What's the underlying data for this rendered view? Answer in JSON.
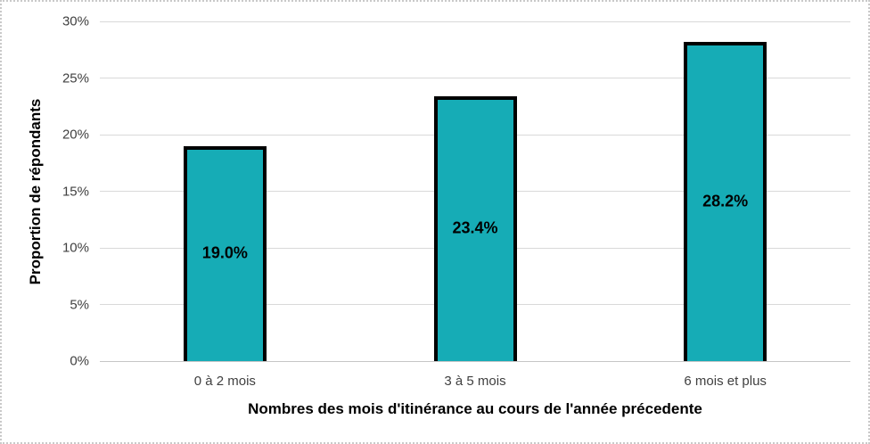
{
  "chart_data": {
    "type": "bar",
    "title": "",
    "categories": [
      "0 à 2 mois",
      "3 à 5 mois",
      "6 mois et plus"
    ],
    "values": [
      19.0,
      23.4,
      28.2
    ],
    "value_labels": [
      "19.0%",
      "23.4%",
      "28.2%"
    ],
    "xlabel": "Nombres des mois d'itinérance au cours de l'année précedente",
    "ylabel": "Proportion de répondants",
    "ylim": [
      0,
      30
    ],
    "ytick_step": 5,
    "ytick_labels": [
      "0%",
      "5%",
      "10%",
      "15%",
      "20%",
      "25%",
      "30%"
    ],
    "grid": true,
    "legend": false,
    "colors": {
      "bar_fill": "#16acb6",
      "bar_border": "#000000",
      "gridline": "#d9d9d9",
      "axis_line": "#c6c6c6",
      "tick_label": "#404040",
      "data_label": "#000000",
      "figure_border": "#c9c9c9",
      "background": "#ffffff"
    }
  }
}
